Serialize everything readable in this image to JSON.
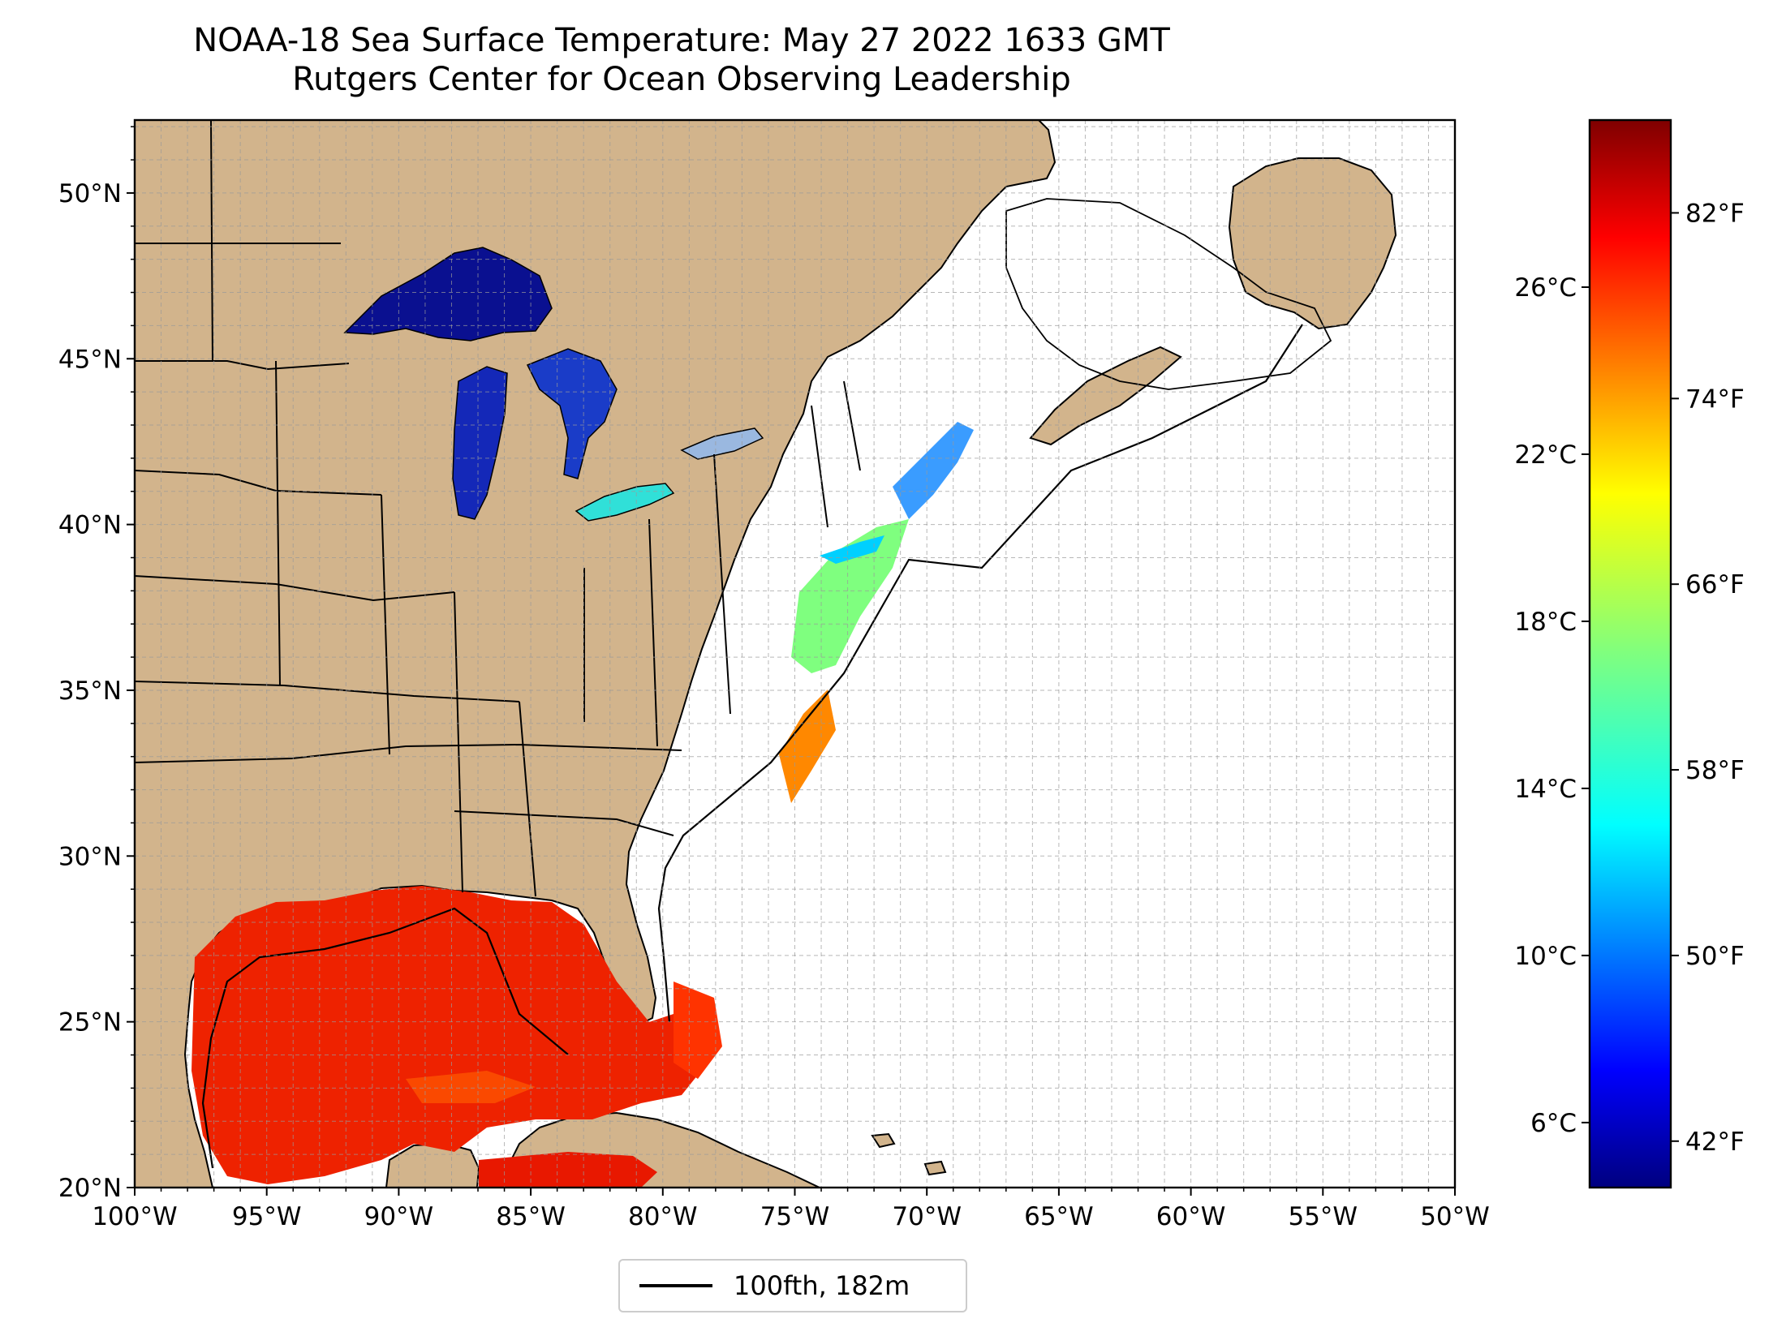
{
  "title": {
    "line1": "NOAA-18 Sea Surface Temperature: May 27 2022 1633 GMT",
    "line2": "Rutgers Center for Ocean Observing Leadership"
  },
  "map": {
    "lon_range": [
      -100,
      -50
    ],
    "lat_range": [
      20,
      52.2
    ],
    "x_ticks": [
      "100°W",
      "95°W",
      "90°W",
      "85°W",
      "80°W",
      "75°W",
      "70°W",
      "65°W",
      "60°W",
      "55°W",
      "50°W"
    ],
    "y_ticks": [
      "20°N",
      "25°N",
      "30°N",
      "35°N",
      "40°N",
      "45°N",
      "50°N"
    ],
    "land_color": "#d2b48c",
    "grid": "dashed light gray, 1 degree",
    "layers": [
      "land",
      "state borders",
      "coastline",
      "100 fathom isobath",
      "sea surface temperature"
    ]
  },
  "legend": {
    "label": "100fth, 182m",
    "position": "bottom-center"
  },
  "colorbar": {
    "colormap": "jet",
    "celsius_ticks": [
      "26°C",
      "22°C",
      "18°C",
      "14°C",
      "10°C",
      "6°C"
    ],
    "fahrenheit_ticks": [
      "82°F",
      "74°F",
      "66°F",
      "58°F",
      "50°F",
      "42°F"
    ],
    "range_f": [
      40,
      86
    ],
    "colors": [
      "#00007f",
      "#0000ff",
      "#007fff",
      "#00ffff",
      "#7fff7f",
      "#ffff00",
      "#ff7f00",
      "#ff0000",
      "#7f0000"
    ]
  },
  "chart_data": {
    "type": "heatmap",
    "title": "NOAA-18 Sea Surface Temperature: May 27 2022 1633 GMT",
    "subtitle": "Rutgers Center for Ocean Observing Leadership",
    "xlim": [
      -100,
      -50
    ],
    "ylim": [
      20,
      52.2
    ],
    "colorbar_range_f": [
      40,
      86
    ],
    "regions_approx_f": [
      {
        "region": "Gulf of Mexico",
        "value": 82
      },
      {
        "region": "Caribbean north of Yucatan",
        "value": 82
      },
      {
        "region": "Florida Keys",
        "value": 82
      },
      {
        "region": "Cape Hatteras",
        "value": 77
      },
      {
        "region": "Mid-Atlantic Bight",
        "value": 63
      },
      {
        "region": "Gulf of Maine",
        "value": 52
      },
      {
        "region": "Lake Erie",
        "value": 58
      },
      {
        "region": "Lake Michigan",
        "value": 44
      },
      {
        "region": "Lake Huron",
        "value": 44
      },
      {
        "region": "Lake Superior",
        "value": 40
      }
    ]
  }
}
